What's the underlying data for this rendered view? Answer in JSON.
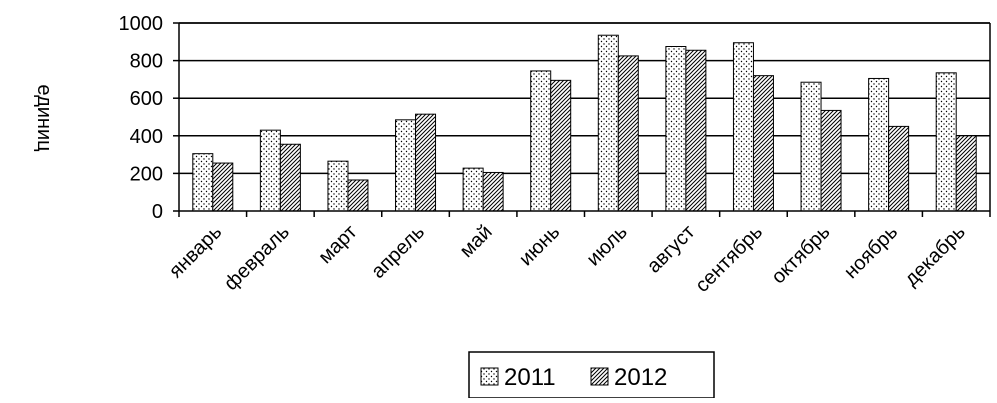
{
  "chart_data": {
    "type": "bar",
    "title": "",
    "xlabel": "",
    "ylabel": "единиц",
    "categories": [
      "январь",
      "февраль",
      "март",
      "апрель",
      "май",
      "июнь",
      "июль",
      "август",
      "сентябрь",
      "октябрь",
      "ноябрь",
      "декабрь"
    ],
    "series": [
      {
        "name": "2011",
        "values": [
          305,
          430,
          265,
          485,
          228,
          745,
          935,
          875,
          895,
          685,
          705,
          735
        ],
        "pattern": "dots"
      },
      {
        "name": "2012",
        "values": [
          255,
          355,
          165,
          515,
          205,
          695,
          825,
          855,
          720,
          535,
          450,
          400
        ],
        "pattern": "hatch"
      }
    ],
    "ylim": [
      0,
      1000
    ],
    "yticks": [
      0,
      200,
      400,
      600,
      800,
      1000
    ],
    "grid": true,
    "legend_position": "bottom"
  }
}
